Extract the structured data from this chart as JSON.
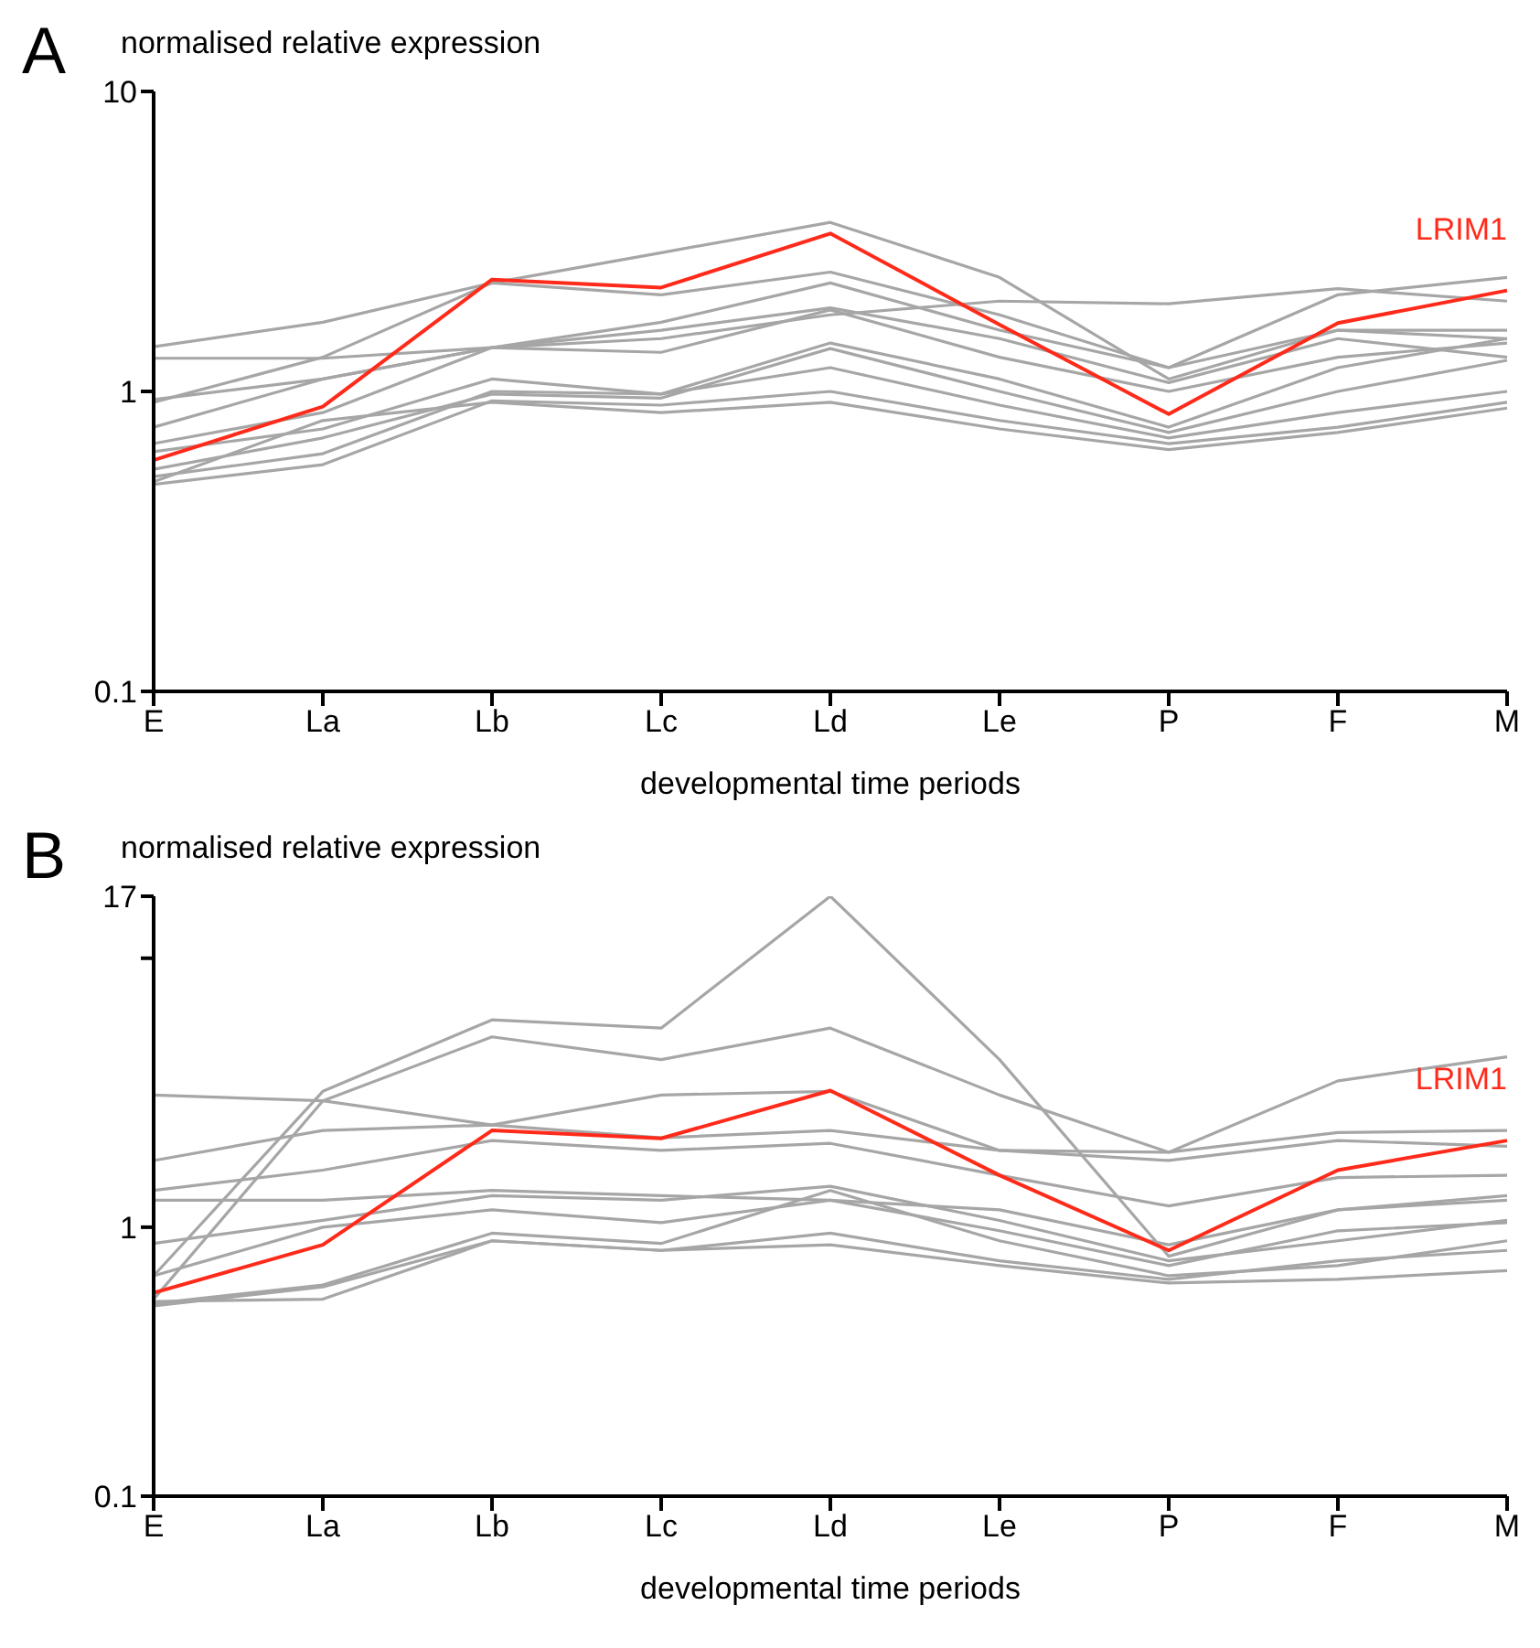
{
  "chart_data": [
    {
      "type": "line",
      "title": "A",
      "ylabel": "normalised relative expression",
      "xlabel": "developmental time periods",
      "categories": [
        "E",
        "La",
        "Lb",
        "Lc",
        "Ld",
        "Le",
        "P",
        "F",
        "M"
      ],
      "log": true,
      "ylim": [
        0.1,
        10
      ],
      "yticks": [
        0.1,
        1,
        10
      ],
      "grid": false,
      "legend": false,
      "marker": "none",
      "series": [
        {
          "color": "#a6a6a6",
          "values": [
            1.41,
            1.7,
            2.3,
            2.9,
            3.66,
            2.4,
            1.1,
            1.6,
            1.5
          ]
        },
        {
          "color": "#a6a6a6",
          "values": [
            1.29,
            1.29,
            1.4,
            1.5,
            1.8,
            2.0,
            1.96,
            2.2,
            2.0
          ]
        },
        {
          "color": "#a6a6a6",
          "values": [
            0.92,
            1.3,
            2.3,
            2.1,
            2.5,
            1.8,
            1.2,
            2.1,
            2.4
          ]
        },
        {
          "color": "#a6a6a6",
          "values": [
            0.94,
            1.1,
            1.4,
            1.7,
            2.3,
            1.6,
            1.2,
            1.6,
            1.6
          ]
        },
        {
          "color": "#a6a6a6",
          "values": [
            0.76,
            1.1,
            1.4,
            1.6,
            1.9,
            1.5,
            1.07,
            1.5,
            1.3
          ]
        },
        {
          "color": "#a6a6a6",
          "values": [
            0.67,
            0.85,
            1.4,
            1.35,
            1.87,
            1.3,
            1.0,
            1.3,
            1.45
          ]
        },
        {
          "color": "#a6a6a6",
          "values": [
            0.63,
            0.75,
            1.1,
            0.98,
            1.45,
            1.1,
            0.76,
            1.2,
            1.5
          ]
        },
        {
          "color": "#a6a6a6",
          "values": [
            0.55,
            0.7,
            0.98,
            0.95,
            1.39,
            1.0,
            0.73,
            1.0,
            1.27
          ]
        },
        {
          "color": "#a6a6a6",
          "values": [
            0.52,
            0.62,
            1.0,
            0.98,
            1.2,
            0.9,
            0.7,
            0.85,
            1.0
          ]
        },
        {
          "color": "#a6a6a6",
          "values": [
            0.49,
            0.57,
            0.93,
            0.9,
            1.0,
            0.8,
            0.67,
            0.76,
            0.92
          ]
        },
        {
          "color": "#a6a6a6",
          "values": [
            0.5,
            0.8,
            0.92,
            0.85,
            0.92,
            0.75,
            0.64,
            0.73,
            0.88
          ]
        },
        {
          "name": "LRIM1",
          "color": "#ff2a1a",
          "values": [
            0.59,
            0.89,
            2.36,
            2.22,
            3.36,
            1.67,
            0.84,
            1.69,
            2.17
          ]
        }
      ]
    },
    {
      "type": "line",
      "title": "B",
      "ylabel": "normalised relative expression",
      "xlabel": "developmental time periods",
      "categories": [
        "E",
        "La",
        "Lb",
        "Lc",
        "Ld",
        "Le",
        "P",
        "F",
        "M"
      ],
      "log": true,
      "ylim": [
        0.1,
        17
      ],
      "yticks": [
        0.1,
        1,
        {
          "value": 10,
          "label": null
        },
        17
      ],
      "grid": false,
      "legend": false,
      "marker": "none",
      "series": [
        {
          "color": "#a6a6a6",
          "values": [
            0.66,
            3.2,
            5.9,
            5.5,
            17,
            4.2,
            0.78,
            1.16,
            1.31
          ]
        },
        {
          "color": "#a6a6a6",
          "values": [
            0.54,
            2.95,
            5.1,
            4.2,
            5.5,
            3.1,
            1.9,
            3.5,
            4.3
          ]
        },
        {
          "color": "#a6a6a6",
          "values": [
            3.1,
            2.95,
            2.4,
            3.1,
            3.2,
            1.93,
            1.9,
            2.25,
            2.29
          ]
        },
        {
          "color": "#a6a6a6",
          "values": [
            1.77,
            2.29,
            2.4,
            2.15,
            2.29,
            1.93,
            1.77,
            2.1,
            2.0
          ]
        },
        {
          "color": "#a6a6a6",
          "values": [
            1.37,
            1.63,
            2.1,
            1.93,
            2.05,
            1.56,
            1.2,
            1.53,
            1.56
          ]
        },
        {
          "color": "#a6a6a6",
          "values": [
            1.26,
            1.26,
            1.37,
            1.31,
            1.26,
            1.16,
            0.86,
            1.16,
            1.26
          ]
        },
        {
          "color": "#a6a6a6",
          "values": [
            0.87,
            1.06,
            1.31,
            1.26,
            1.42,
            1.06,
            0.75,
            0.89,
            1.06
          ]
        },
        {
          "color": "#a6a6a6",
          "values": [
            0.66,
            1.0,
            1.16,
            1.04,
            1.26,
            0.97,
            0.72,
            0.97,
            1.04
          ]
        },
        {
          "color": "#a6a6a6",
          "values": [
            0.52,
            0.61,
            0.95,
            0.87,
            1.37,
            0.89,
            0.66,
            0.72,
            0.89
          ]
        },
        {
          "color": "#a6a6a6",
          "values": [
            0.51,
            0.6,
            0.89,
            0.82,
            0.95,
            0.75,
            0.64,
            0.75,
            0.82
          ]
        },
        {
          "color": "#a6a6a6",
          "values": [
            0.53,
            0.54,
            0.89,
            0.82,
            0.86,
            0.72,
            0.62,
            0.64,
            0.69
          ]
        },
        {
          "name": "LRIM1",
          "color": "#ff2a1a",
          "values": [
            0.57,
            0.86,
            2.29,
            2.14,
            3.22,
            1.56,
            0.82,
            1.63,
            2.1
          ]
        }
      ]
    }
  ]
}
